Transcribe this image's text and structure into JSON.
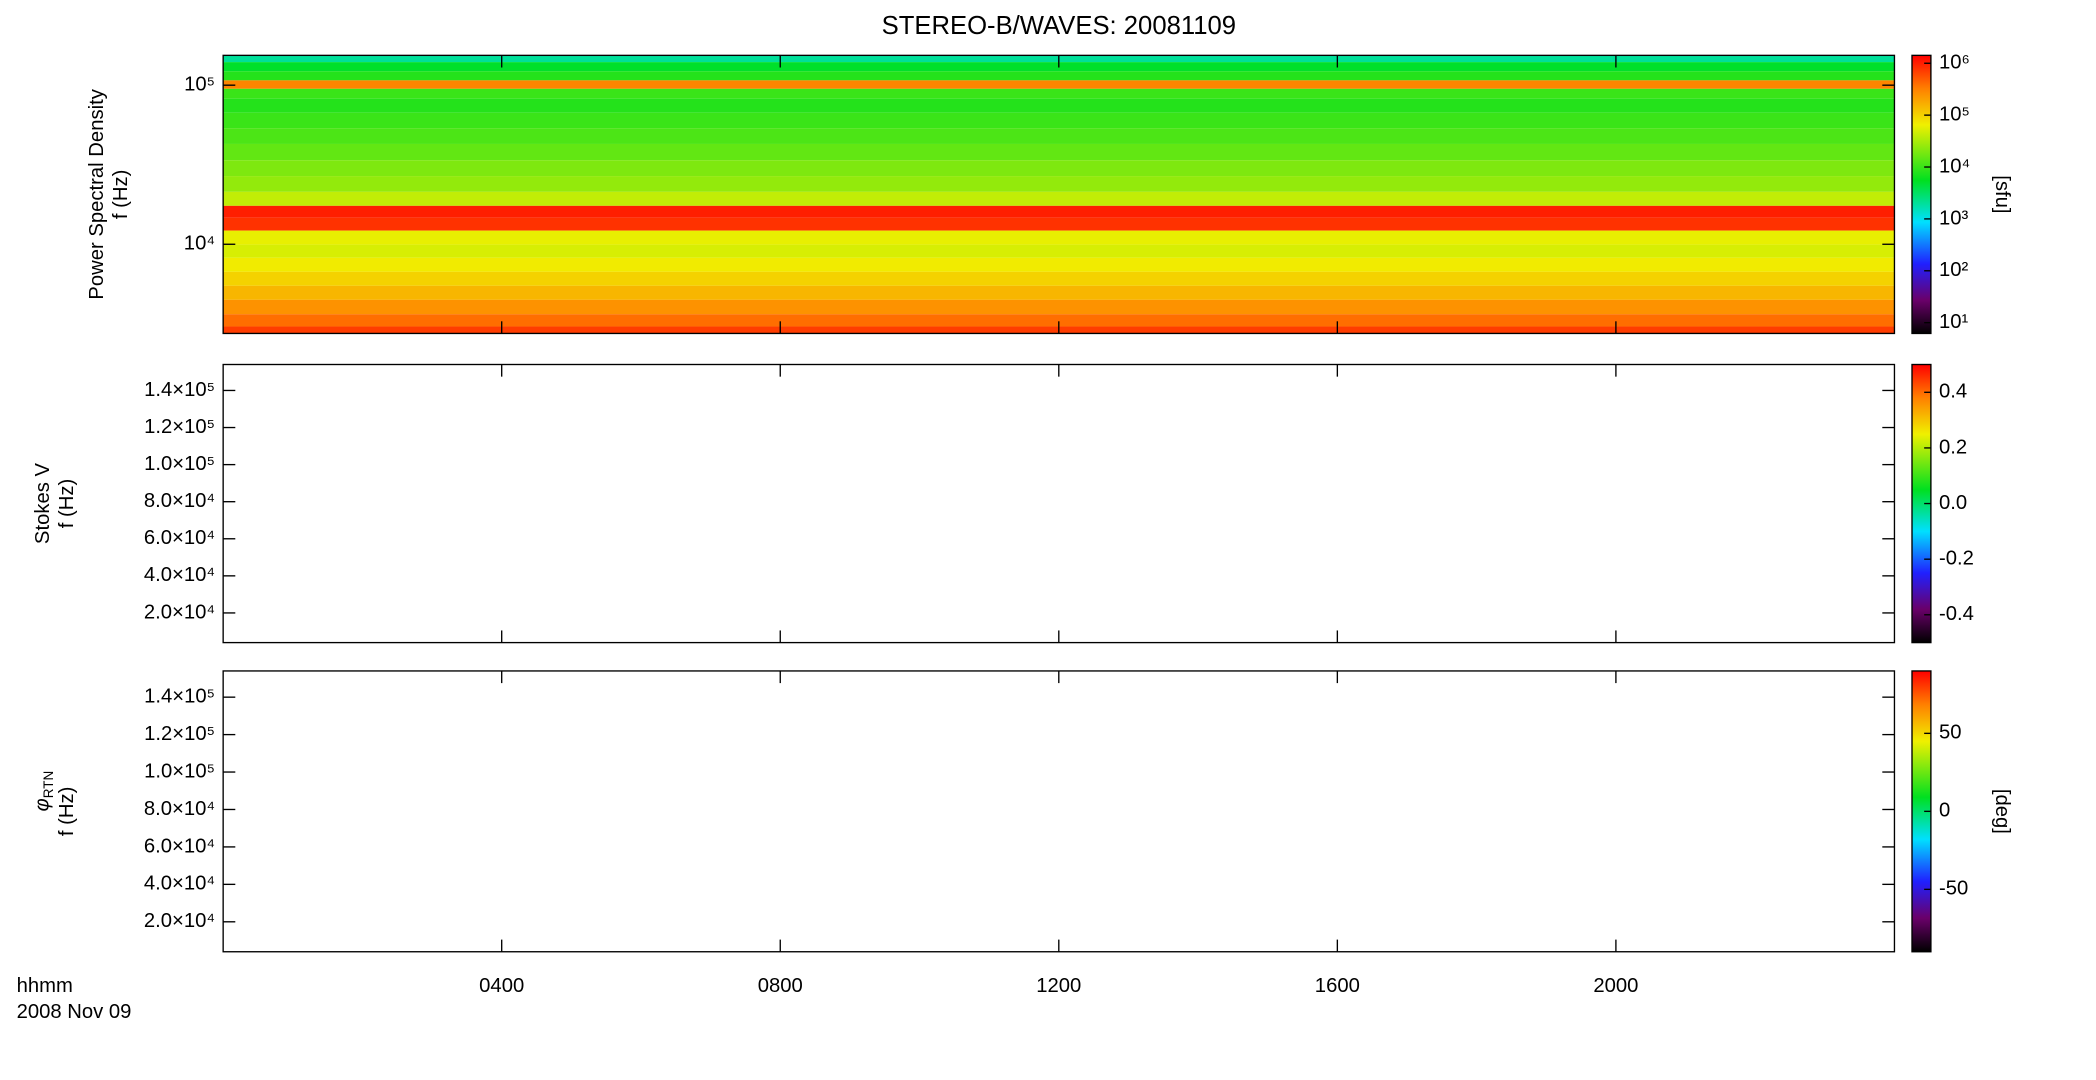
{
  "title": "STEREO-B/WAVES: 20081109",
  "x_label": "hhmm",
  "date_label": "2008 Nov 09",
  "chart_data": [
    {
      "type": "heatmap",
      "ylabel": "Power Spectral Density",
      "ylabel2": "f (Hz)",
      "log_y": true,
      "ylim": [
        2750,
        154000
      ],
      "yticks": [
        {
          "value": 10000,
          "label": "10⁴"
        },
        {
          "value": 100000,
          "label": "10⁵"
        }
      ],
      "xlim": [
        0,
        24
      ],
      "xticks": [
        4,
        8,
        12,
        16,
        20
      ],
      "y": [
        150000,
        130000,
        115000,
        100000,
        90000,
        75000,
        60000,
        48000,
        38000,
        30000,
        24000,
        19000,
        16000,
        13500,
        11000,
        9000,
        7500,
        6000,
        5000,
        4000,
        3300,
        2800
      ],
      "values": [
        2000,
        5000,
        8000,
        300000,
        10000,
        8000,
        10000,
        12000,
        15000,
        20000,
        25000,
        40000,
        1000000,
        800000,
        60000,
        50000,
        70000,
        100000,
        150000,
        250000,
        400000,
        700000
      ],
      "log_c": true,
      "clim": [
        6.2,
        1420000
      ],
      "cticks": [
        {
          "value": 10,
          "label": "10¹"
        },
        {
          "value": 100,
          "label": "10²"
        },
        {
          "value": 1000,
          "label": "10³"
        },
        {
          "value": 10000,
          "label": "10⁴"
        },
        {
          "value": 100000,
          "label": "10⁵"
        },
        {
          "value": 1000000,
          "label": "10⁶"
        }
      ],
      "clabel": "[sfu]"
    },
    {
      "type": "heatmap",
      "ylabel": "Stokes V",
      "ylabel2": "f (Hz)",
      "log_y": false,
      "ylim": [
        4000,
        154000
      ],
      "yticks": [
        {
          "value": 20000,
          "label": "2.0×10⁴"
        },
        {
          "value": 40000,
          "label": "4.0×10⁴"
        },
        {
          "value": 60000,
          "label": "6.0×10⁴"
        },
        {
          "value": 80000,
          "label": "8.0×10⁴"
        },
        {
          "value": 100000,
          "label": "1.0×10⁵"
        },
        {
          "value": 120000,
          "label": "1.2×10⁵"
        },
        {
          "value": 140000,
          "label": "1.4×10⁵"
        }
      ],
      "xlim": [
        0,
        24
      ],
      "xticks": [
        4,
        8,
        12,
        16,
        20
      ],
      "log_c": false,
      "clim": [
        -0.5,
        0.5
      ],
      "cticks": [
        -0.4,
        -0.2,
        {
          "value": 0,
          "label": "0.0"
        },
        0.2,
        0.4
      ]
    },
    {
      "type": "heatmap",
      "ylabel_symbol": "φ",
      "ylabel_subscript": "RTN",
      "ylabel2": "f (Hz)",
      "log_y": false,
      "ylim": [
        4000,
        154000
      ],
      "yticks": [
        {
          "value": 20000,
          "label": "2.0×10⁴"
        },
        {
          "value": 40000,
          "label": "4.0×10⁴"
        },
        {
          "value": 60000,
          "label": "6.0×10⁴"
        },
        {
          "value": 80000,
          "label": "8.0×10⁴"
        },
        {
          "value": 100000,
          "label": "1.0×10⁵"
        },
        {
          "value": 120000,
          "label": "1.2×10⁵"
        },
        {
          "value": 140000,
          "label": "1.4×10⁵"
        }
      ],
      "xlim": [
        0,
        24
      ],
      "xticks": [
        {
          "value": 4,
          "label": "0400"
        },
        {
          "value": 8,
          "label": "0800"
        },
        {
          "value": 12,
          "label": "1200"
        },
        {
          "value": 16,
          "label": "1600"
        },
        {
          "value": 20,
          "label": "2000"
        }
      ],
      "log_c": false,
      "clim": [
        -90,
        90
      ],
      "cticks": [
        -50,
        0,
        50
      ],
      "clabel": "[deg]"
    }
  ]
}
